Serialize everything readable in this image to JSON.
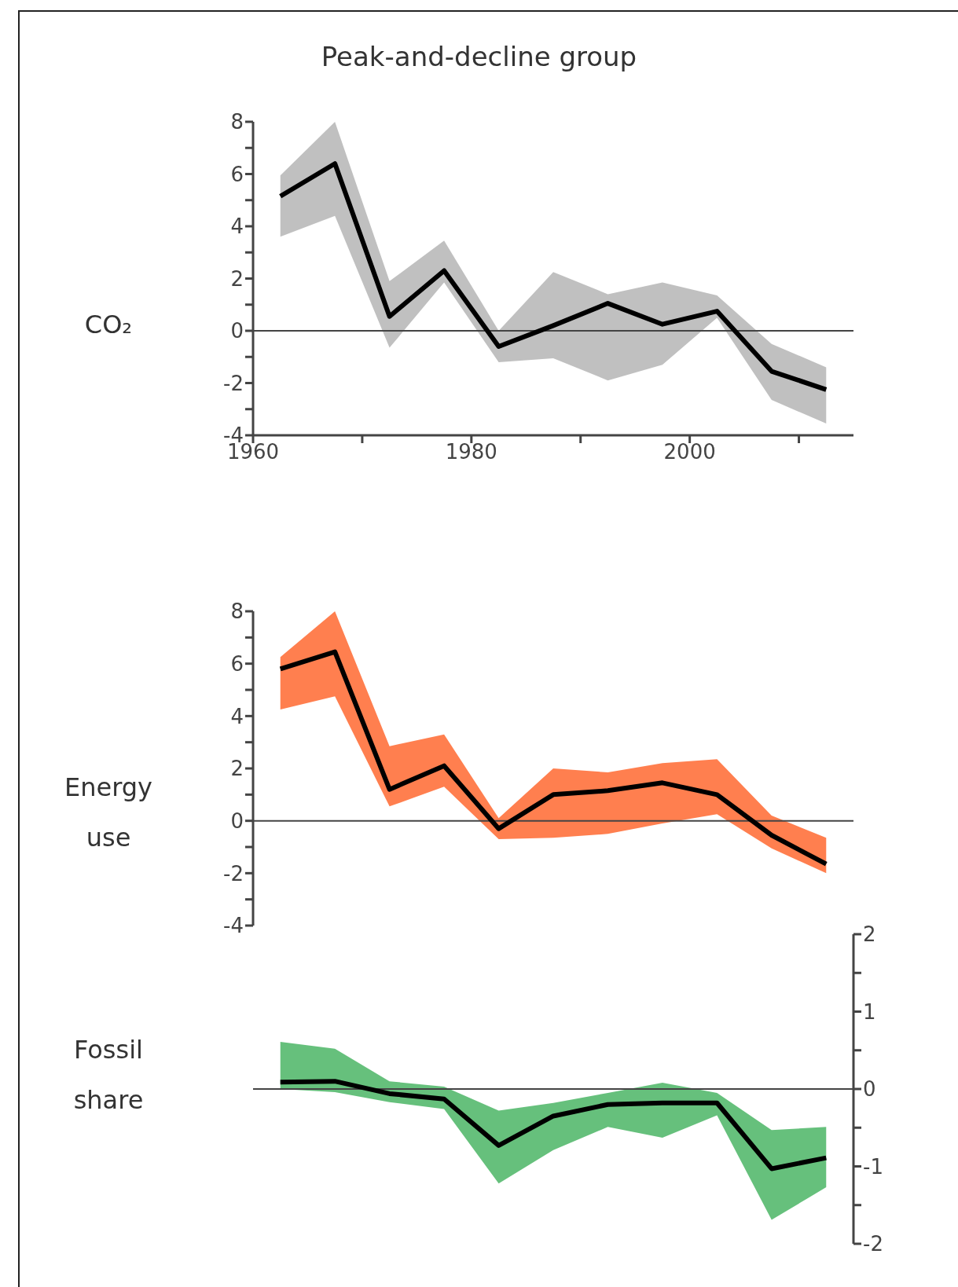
{
  "chart_data": [
    {
      "type": "line",
      "title": "Peak-and-decline group",
      "ylabel": "CO₂",
      "x": [
        1962.5,
        1967.5,
        1972.5,
        1977.5,
        1982.5,
        1987.5,
        1992.5,
        1997.5,
        2002.5,
        2007.5,
        2012.5
      ],
      "xlim": [
        1960,
        2015
      ],
      "xticks": [
        1960,
        {
          "value": 1970,
          "label": null
        },
        1980,
        {
          "value": 1990,
          "label": null
        },
        2000,
        {
          "value": 2010,
          "label": null
        }
      ],
      "ylim": [
        -4,
        8
      ],
      "yticks": [
        -4,
        {
          "value": -3,
          "label": null
        },
        -2,
        {
          "value": -1,
          "label": null
        },
        0,
        {
          "value": 1,
          "label": null
        },
        2,
        {
          "value": 3,
          "label": null
        },
        4,
        {
          "value": 5,
          "label": null
        },
        6,
        {
          "value": 7,
          "label": null
        },
        8
      ],
      "series": [
        {
          "color": "#000000",
          "colors": [
            "#c0c0c0",
            "#c0c0c0",
            "#c0c0c0",
            "#c0c0c0",
            "#c0c0c0",
            "#c0c0c0",
            "#c0c0c0",
            "#c0c0c0",
            "#c0c0c0",
            "#c0c0c0",
            "#c0c0c0"
          ],
          "values": [
            5.15,
            6.4,
            0.55,
            2.3,
            -0.6,
            0.2,
            1.05,
            0.25,
            0.75,
            -1.55,
            -2.25
          ],
          "lower": [
            3.6,
            4.4,
            -0.65,
            1.85,
            -1.2,
            -1.05,
            -1.9,
            -1.3,
            0.5,
            -2.65,
            -3.55
          ],
          "upper": [
            5.95,
            8,
            1.9,
            3.45,
            0,
            2.25,
            1.4,
            1.85,
            1.35,
            -0.5,
            -1.4
          ]
        }
      ],
      "ref_lines": [
        {
          "axis": "y",
          "value": 0
        }
      ]
    },
    {
      "type": "line",
      "ylabel": "Energy use",
      "x": [
        1962.5,
        1967.5,
        1972.5,
        1977.5,
        1982.5,
        1987.5,
        1992.5,
        1997.5,
        2002.5,
        2007.5,
        2012.5
      ],
      "xlim": [
        1960,
        2015
      ],
      "tick_labels": "y",
      "ylim": [
        -4,
        8
      ],
      "yticks": [
        -4,
        {
          "value": -3,
          "label": null
        },
        -2,
        {
          "value": -1,
          "label": null
        },
        0,
        {
          "value": 1,
          "label": null
        },
        2,
        {
          "value": 3,
          "label": null
        },
        4,
        {
          "value": 5,
          "label": null
        },
        6,
        {
          "value": 7,
          "label": null
        },
        8
      ],
      "series": [
        {
          "color": "#000000",
          "colors": [
            "#ff7f4f",
            "#ff7f4f",
            "#ff7f4f",
            "#ff7f4f",
            "#ff7f4f",
            "#ff7f4f",
            "#ff7f4f",
            "#ff7f4f",
            "#ff7f4f",
            "#ff7f4f",
            "#ff7f4f"
          ],
          "values": [
            5.8,
            6.45,
            1.2,
            2.1,
            -0.3,
            1.0,
            1.15,
            1.45,
            1.0,
            -0.55,
            -1.65
          ],
          "lower": [
            4.25,
            4.75,
            0.55,
            1.3,
            -0.7,
            -0.65,
            -0.5,
            -0.1,
            0.25,
            -1.05,
            -2.0
          ],
          "upper": [
            6.25,
            8,
            2.85,
            3.3,
            0.1,
            2.0,
            1.85,
            2.2,
            2.35,
            0.2,
            -0.65
          ]
        }
      ],
      "ref_lines": [
        {
          "axis": "y",
          "value": 0
        }
      ]
    },
    {
      "type": "line",
      "ylabel": "Fossil share",
      "x": [
        1962.5,
        1967.5,
        1972.5,
        1977.5,
        1982.5,
        1987.5,
        1992.5,
        1997.5,
        2002.5,
        2007.5,
        2012.5
      ],
      "xlim": [
        1960,
        2015
      ],
      "tick_labels": "y",
      "y2lim": [
        -2,
        2
      ],
      "y2ticks": [
        -2,
        {
          "value": -1.5,
          "label": null
        },
        -1,
        {
          "value": -0.5,
          "label": null
        },
        0,
        {
          "value": 0.5,
          "label": null
        },
        1,
        {
          "value": 1.5,
          "label": null
        },
        2
      ],
      "series": [
        {
          "axis": "y2",
          "color": "#000000",
          "colors": [
            "#66c07c",
            "#66c07c",
            "#66c07c",
            "#66c07c",
            "#66c07c",
            "#66c07c",
            "#66c07c",
            "#66c07c",
            "#66c07c",
            "#66c07c",
            "#66c07c"
          ],
          "values": [
            0.09,
            0.1,
            -0.06,
            -0.13,
            -0.73,
            -0.35,
            -0.2,
            -0.18,
            -0.18,
            -1.03,
            -0.89
          ],
          "lower": [
            0.0,
            -0.04,
            -0.17,
            -0.26,
            -1.22,
            -0.79,
            -0.49,
            -0.63,
            -0.34,
            -1.69,
            -1.27
          ],
          "upper": [
            0.61,
            0.52,
            0.1,
            0.03,
            -0.28,
            -0.18,
            -0.05,
            0.08,
            -0.05,
            -0.53,
            -0.49
          ]
        }
      ],
      "ref_lines": [
        {
          "axis": "y2",
          "value": 0
        }
      ]
    }
  ]
}
